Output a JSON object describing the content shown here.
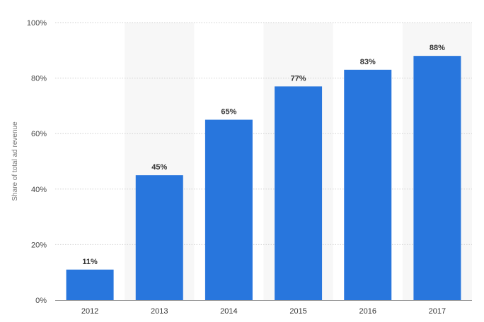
{
  "chart_data": {
    "type": "bar",
    "title": "",
    "xlabel": "",
    "ylabel": "Share of total ad revenue",
    "categories": [
      "2012",
      "2013",
      "2014",
      "2015",
      "2016",
      "2017"
    ],
    "values": [
      11,
      45,
      65,
      77,
      83,
      88
    ],
    "data_labels": [
      "11%",
      "45%",
      "65%",
      "77%",
      "83%",
      "88%"
    ],
    "ylim": [
      0,
      100
    ],
    "y_ticks": [
      0,
      20,
      40,
      60,
      80,
      100
    ],
    "y_tick_labels": [
      "0%",
      "20%",
      "40%",
      "60%",
      "80%",
      "100%"
    ],
    "grid": true,
    "legend": "none",
    "colors": {
      "bar": "#2876dd",
      "band": "#f7f7f7",
      "grid": "#cfcfcf",
      "axis": "#999999"
    }
  }
}
